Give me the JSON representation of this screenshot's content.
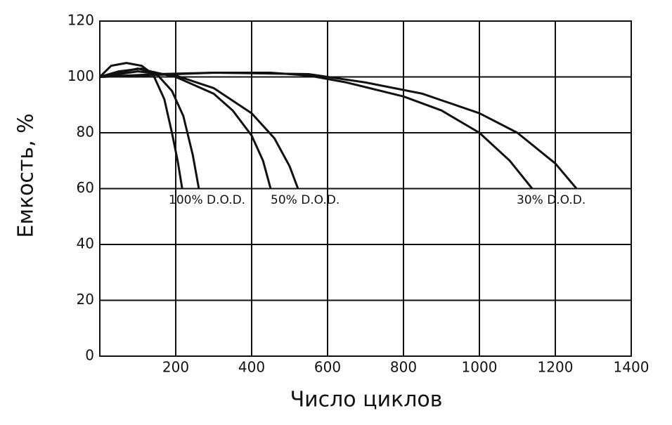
{
  "chart_data": {
    "type": "line",
    "x_label": "Число циклов",
    "y_label": "Емкость, %",
    "xlim": [
      0,
      1400
    ],
    "xticks": [
      200,
      400,
      600,
      800,
      1000,
      1200,
      1400
    ],
    "ylim": [
      0,
      120
    ],
    "yticks": [
      0,
      20,
      40,
      60,
      80,
      100,
      120
    ],
    "grid": true,
    "annotations": [
      "100% D.O.D.",
      "50% D.O.D.",
      "30% D.O.D."
    ],
    "series": [
      {
        "color": "#111111",
        "x": [
          0,
          30,
          70,
          110,
          140,
          170,
          190,
          205,
          217
        ],
        "values": [
          100,
          104,
          105,
          104,
          101,
          92,
          80,
          70,
          60
        ]
      },
      {
        "color": "#111111",
        "x": [
          0,
          50,
          110,
          150,
          190,
          220,
          245,
          261
        ],
        "values": [
          100,
          102,
          103,
          101,
          95,
          86,
          72,
          60
        ]
      },
      {
        "color": "#111111",
        "x": [
          0,
          100,
          200,
          300,
          350,
          400,
          430,
          450
        ],
        "values": [
          100,
          103,
          100,
          94,
          88,
          79,
          70,
          60
        ]
      },
      {
        "color": "#111111",
        "x": [
          0,
          100,
          200,
          300,
          400,
          460,
          500,
          522
        ],
        "values": [
          100,
          102,
          100.5,
          96,
          87,
          78,
          68,
          60
        ]
      },
      {
        "color": "#111111",
        "x": [
          0,
          150,
          300,
          450,
          550,
          650,
          800,
          900,
          1000,
          1080,
          1139
        ],
        "values": [
          100,
          101,
          101.5,
          101.5,
          100.5,
          98,
          93,
          88,
          80,
          70,
          60
        ]
      },
      {
        "color": "#111111",
        "x": [
          0,
          300,
          550,
          700,
          850,
          1000,
          1100,
          1200,
          1256
        ],
        "values": [
          100,
          101.5,
          101,
          98,
          94,
          87,
          80,
          69,
          60
        ]
      }
    ]
  }
}
